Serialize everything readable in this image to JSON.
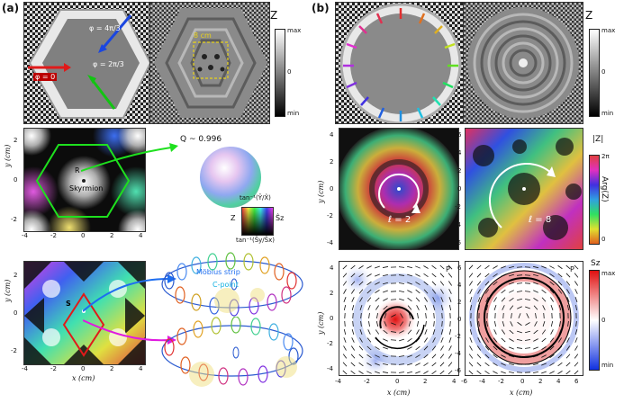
{
  "panel_a": {
    "label": "(a)",
    "top": {
      "phi_labels": [
        "φ = 4π/3",
        "φ = 2π/3",
        "φ = 0"
      ],
      "scale": "8 cm",
      "colorbar": {
        "title": "Z",
        "max": "max",
        "mid": "0",
        "min": "min"
      }
    },
    "middle": {
      "q_label": "Q ~ 0.996",
      "r_label": "R",
      "skyrmion_label": "Skyrmion",
      "legend_top": "tan⁻¹(Ŷ/X̂)",
      "legend_left": "Z",
      "legend_right": "Ŝz",
      "legend_bottom": "tan⁻¹(Ŝy/Ŝx)",
      "ylabel": "y (cm)",
      "yticks": [
        "2",
        "0",
        "-2"
      ],
      "xticks": [
        "-4",
        "-2",
        "0",
        "2",
        "4"
      ]
    },
    "bottom": {
      "s_label": "S",
      "mobius_label": "Möbius strip",
      "cpoint_label": "C-point",
      "ylabel": "y (cm)",
      "xlabel": "x (cm)",
      "yticks": [
        "2",
        "0",
        "-2"
      ],
      "xticks": [
        "-4",
        "-2",
        "0",
        "2",
        "4"
      ]
    }
  },
  "panel_b": {
    "label": "(b)",
    "top": {
      "colorbar": {
        "title": "Z",
        "max": "max",
        "mid": "0",
        "min": "min"
      }
    },
    "middle": {
      "left_l": "ℓ = 2",
      "right_l": "ℓ = 8",
      "colorbar_top": "|Z|",
      "colorbar_label": "Arg(Z)",
      "cb_top_tick": "2π",
      "cb_bottom_tick": "0",
      "ylabel": "y (cm)",
      "yticks_left": [
        "4",
        "2",
        "0",
        "-2",
        "-4"
      ],
      "yticks_right": [
        "6",
        "4",
        "2",
        "0",
        "-2",
        "-4",
        "-6"
      ]
    },
    "bottom": {
      "p_label": "P",
      "sz_label": "Sz",
      "colorbar": {
        "max": "max",
        "mid": "0",
        "min": "min"
      },
      "ylabel": "y (cm)",
      "xlabel": "x (cm)",
      "xticks_left": [
        "-4",
        "-2",
        "0",
        "2",
        "4"
      ],
      "xticks_right": [
        "-6",
        "-4",
        "-2",
        "0",
        "2",
        "4",
        "6"
      ],
      "yticks_left": [
        "4",
        "2",
        "0",
        "-2",
        "-4"
      ],
      "yticks_right": [
        "6",
        "4",
        "2",
        "0",
        "-2",
        "-4",
        "-6"
      ]
    }
  }
}
